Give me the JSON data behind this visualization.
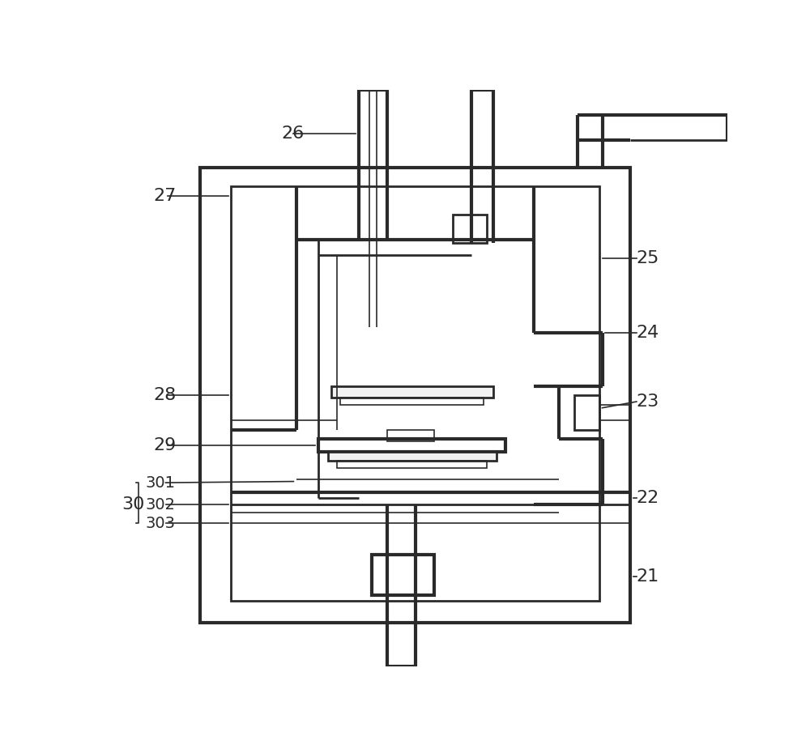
{
  "bg_color": "#ffffff",
  "line_color": "#2a2a2a",
  "lw_thick": 3.0,
  "lw_med": 2.0,
  "lw_thin": 1.2,
  "fig_width": 10.0,
  "fig_height": 9.25
}
